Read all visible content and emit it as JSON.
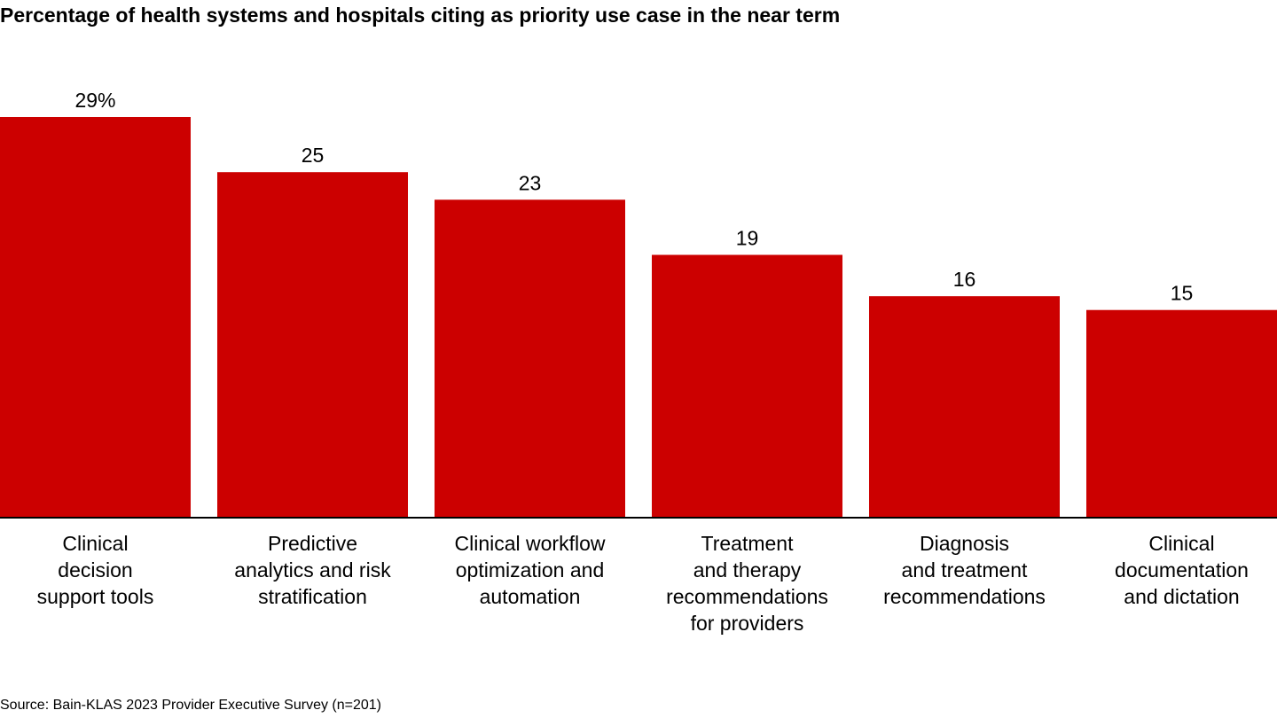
{
  "chart_data": {
    "type": "bar",
    "title": "Percentage of health systems and hospitals citing as priority use case in the near term",
    "categories": [
      [
        "Clinical",
        "decision",
        "support tools"
      ],
      [
        "Predictive",
        "analytics and risk",
        "stratification"
      ],
      [
        "Clinical workflow",
        "optimization and",
        "automation"
      ],
      [
        "Treatment",
        "and therapy",
        "recommendations",
        "for providers"
      ],
      [
        "Diagnosis",
        "and treatment",
        "recommendations"
      ],
      [
        "Clinical",
        "documentation",
        "and dictation"
      ]
    ],
    "values": [
      29,
      25,
      23,
      19,
      16,
      15
    ],
    "data_labels": [
      "29%",
      "25",
      "23",
      "19",
      "16",
      "15"
    ],
    "ylim": [
      0,
      29
    ],
    "grid": false,
    "bar_color": "#cc0000",
    "source": "Source: Bain-KLAS 2023 Provider Executive Survey (n=201)"
  }
}
